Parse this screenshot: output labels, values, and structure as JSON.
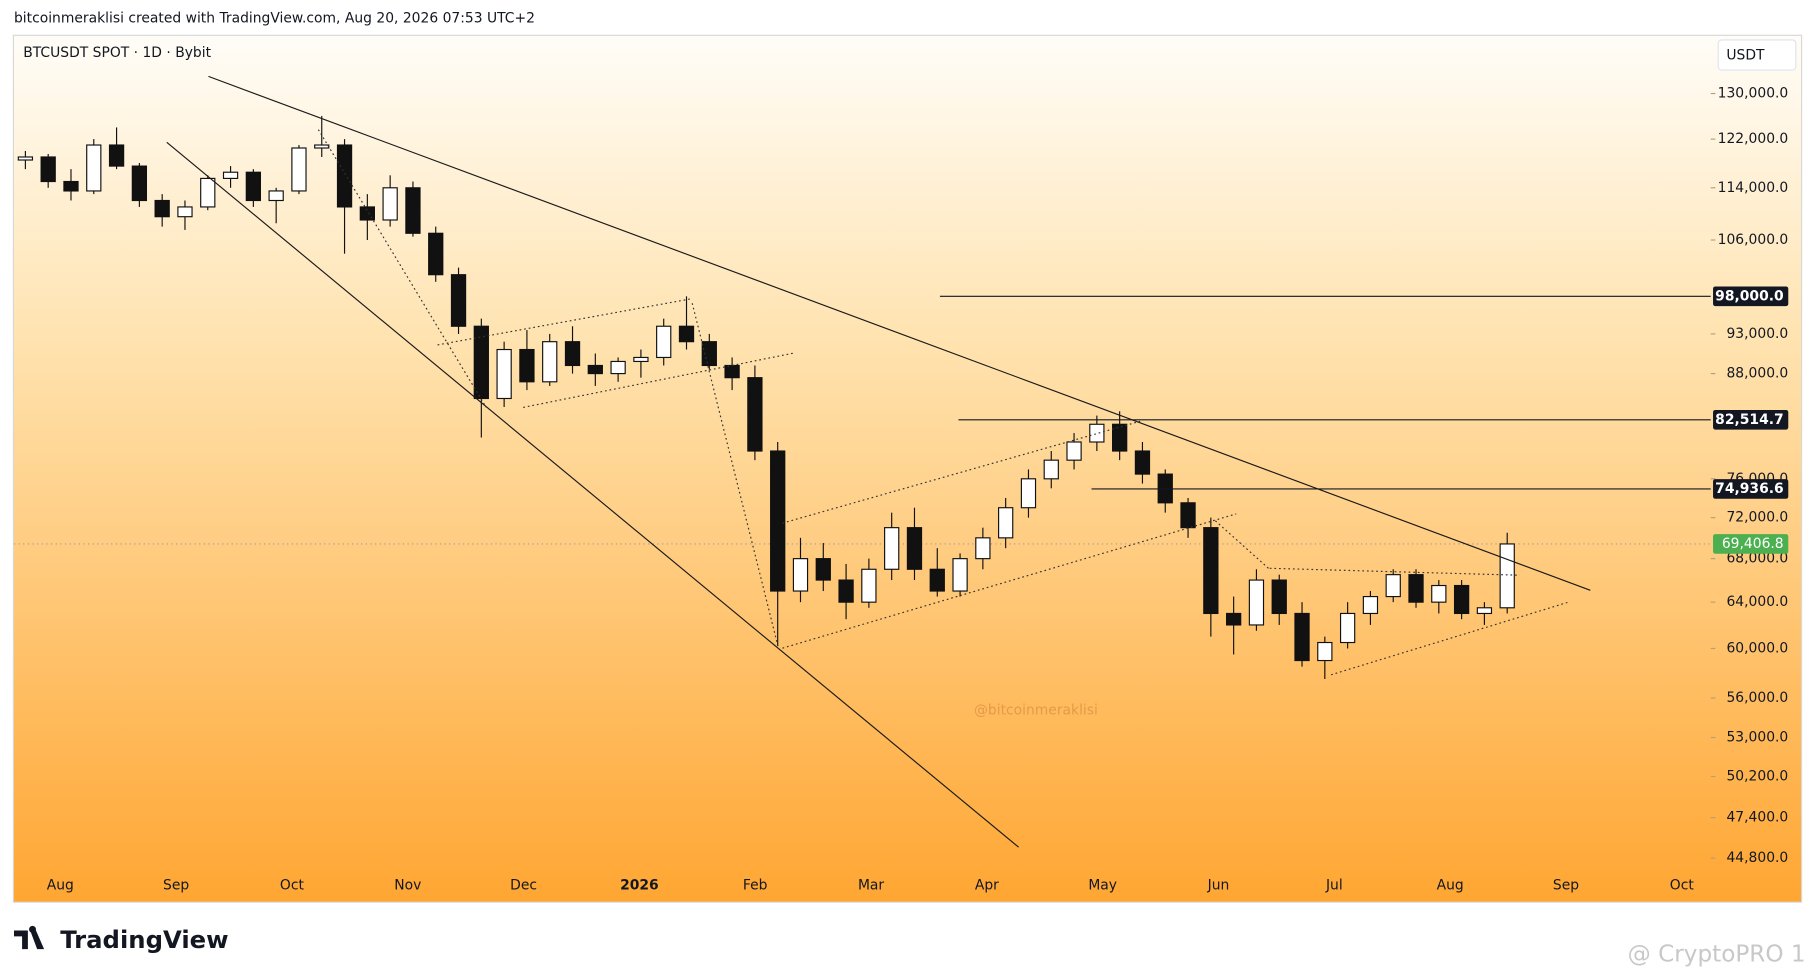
{
  "header": {
    "attribution": "bitcoinmeraklisi created with TradingView.com, Aug 20, 2026 07:53 UTC+2"
  },
  "chart_data": {
    "type": "candlestick",
    "title": "BTCUSDT SPOT · 1D · Bybit",
    "currency": "USDT",
    "watermark": "@bitcoinmeraklisi",
    "log_scale": true,
    "up_color": "#ffffff",
    "down_color": "#111111",
    "open": [
      118500,
      119000,
      115000,
      113500,
      121000,
      117500,
      112000,
      109500,
      111000,
      115500,
      116500,
      112000,
      113500,
      120500,
      121000,
      111000,
      109000,
      114000,
      107000,
      101000,
      94000,
      85000,
      91000,
      87000,
      92000,
      89000,
      88000,
      89500,
      90000,
      94000,
      92000,
      89000,
      87500,
      79000,
      65000,
      68000,
      66000,
      64000,
      67000,
      71000,
      67000,
      65000,
      68000,
      70000,
      73000,
      76000,
      78000,
      80000,
      82000,
      79000,
      76500,
      73500,
      71000,
      63000,
      62000,
      66000,
      63000,
      59000,
      60500,
      63000,
      64500,
      66500,
      64000,
      65500,
      63000,
      63500
    ],
    "high": [
      120000,
      119500,
      117000,
      122000,
      124000,
      118000,
      113000,
      112000,
      116000,
      117500,
      117000,
      114000,
      121000,
      126000,
      122000,
      113000,
      116000,
      115000,
      108000,
      102000,
      95000,
      92000,
      93500,
      93000,
      94000,
      90500,
      90000,
      91000,
      95000,
      98000,
      93000,
      90000,
      89000,
      80000,
      70000,
      69500,
      67500,
      68000,
      72500,
      73000,
      69000,
      68500,
      71000,
      74000,
      77000,
      79000,
      81000,
      83000,
      83500,
      80000,
      77000,
      74000,
      72000,
      64500,
      67000,
      66500,
      64000,
      61000,
      64000,
      65000,
      67000,
      67000,
      66000,
      66000,
      64000,
      70500
    ],
    "low": [
      117000,
      114000,
      112000,
      113000,
      117000,
      111000,
      108000,
      107500,
      110500,
      114000,
      111000,
      108500,
      113000,
      119000,
      104000,
      106000,
      108000,
      106500,
      100000,
      93000,
      80500,
      84000,
      86000,
      86500,
      88000,
      86500,
      87000,
      87500,
      89000,
      91000,
      88500,
      86000,
      78000,
      60200,
      64000,
      65000,
      62500,
      63500,
      66000,
      66000,
      64500,
      64500,
      67000,
      69000,
      72000,
      75000,
      77000,
      79000,
      78000,
      75500,
      72500,
      70000,
      61000,
      59500,
      61500,
      62000,
      58500,
      57500,
      60000,
      62000,
      64000,
      63500,
      63000,
      62500,
      62000,
      63000
    ],
    "close": [
      119000,
      115000,
      113500,
      121000,
      117500,
      112000,
      109500,
      111000,
      115500,
      116500,
      112000,
      113500,
      120500,
      121000,
      111000,
      109000,
      114000,
      107000,
      101000,
      94000,
      85000,
      91000,
      87000,
      92000,
      89000,
      88000,
      89500,
      90000,
      94000,
      92000,
      89000,
      87500,
      79000,
      65000,
      68000,
      66000,
      64000,
      67000,
      71000,
      67000,
      65000,
      68000,
      70000,
      73000,
      76000,
      78000,
      80000,
      82000,
      79000,
      76500,
      73500,
      71000,
      63000,
      62000,
      66000,
      63000,
      59000,
      60500,
      63000,
      64500,
      66500,
      64000,
      65500,
      63000,
      63500,
      69406.8
    ],
    "xticks": [
      "Aug",
      "Sep",
      "Oct",
      "Nov",
      "Dec",
      "2026",
      "Feb",
      "Mar",
      "Apr",
      "May",
      "Jun",
      "Jul",
      "Aug",
      "Sep",
      "Oct"
    ],
    "ylim": [
      42100,
      141100
    ],
    "yticks": [
      {
        "value": 130000,
        "label": "130,000.0"
      },
      {
        "value": 122000,
        "label": "122,000.0"
      },
      {
        "value": 114000,
        "label": "114,000.0"
      },
      {
        "value": 106000,
        "label": "106,000.0"
      },
      {
        "value": 93000,
        "label": "93,000.0"
      },
      {
        "value": 88000,
        "label": "88,000.0"
      },
      {
        "value": 76000,
        "label": "76,000.0"
      },
      {
        "value": 72000,
        "label": "72,000.0"
      },
      {
        "value": 68000,
        "label": "68,000.0"
      },
      {
        "value": 64000,
        "label": "64,000.0"
      },
      {
        "value": 60000,
        "label": "60,000.0"
      },
      {
        "value": 56000,
        "label": "56,000.0"
      },
      {
        "value": 53000,
        "label": "53,000.0"
      },
      {
        "value": 50200,
        "label": "50,200.0"
      },
      {
        "value": 47400,
        "label": "47,400.0"
      },
      {
        "value": 44800,
        "label": "44,800.0"
      }
    ],
    "levels": [
      {
        "value": 98000,
        "label": "98,000.0",
        "color": "#131722"
      },
      {
        "value": 82514.7,
        "label": "82,514.7",
        "color": "#131722"
      },
      {
        "value": 74936.6,
        "label": "74,936.6",
        "color": "#131722"
      }
    ],
    "last_price": {
      "value": 69406.8,
      "label": "69,406.8",
      "color": "#4caf50"
    }
  },
  "footer": {
    "logo": "TradingView",
    "credit": "@ CryptoPRO 1"
  }
}
